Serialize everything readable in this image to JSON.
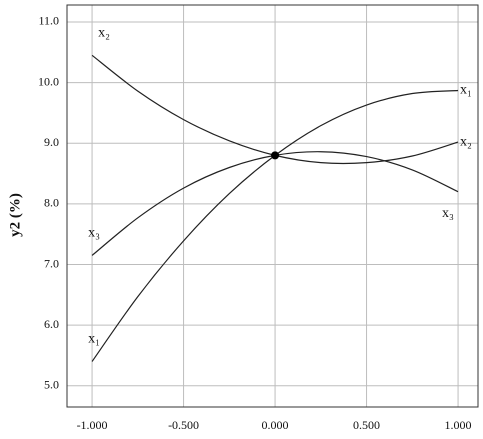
{
  "chart_data": {
    "type": "line",
    "y_label": "y2 (%)",
    "x": [
      -1,
      -0.75,
      -0.5,
      -0.25,
      0,
      0.25,
      0.5,
      0.75,
      1
    ],
    "series": [
      {
        "name": "x₁",
        "color": "#222222",
        "values": [
          5.4,
          6.47,
          7.39,
          8.17,
          8.8,
          9.29,
          9.63,
          9.82,
          9.87
        ]
      },
      {
        "name": "x₂",
        "color": "#222222",
        "values": [
          10.45,
          9.86,
          9.39,
          9.04,
          8.8,
          8.68,
          8.68,
          8.79,
          9.02
        ]
      },
      {
        "name": "x₃",
        "color": "#222222",
        "values": [
          7.15,
          7.77,
          8.26,
          8.6,
          8.8,
          8.86,
          8.78,
          8.56,
          8.2
        ]
      }
    ],
    "center": {
      "x": 0,
      "y": 8.8
    },
    "xlim": [
      -1.137,
      1.109
    ],
    "ylim": [
      4.65,
      11.28
    ],
    "xticks": [
      {
        "value": -1,
        "label": "-1.000"
      },
      {
        "value": -0.5,
        "label": "-0.500"
      },
      {
        "value": 0,
        "label": "0.000"
      },
      {
        "value": 0.5,
        "label": "0.500"
      },
      {
        "value": 1,
        "label": "1.000"
      }
    ],
    "yticks": [
      {
        "value": 5,
        "label": "5.0"
      },
      {
        "value": 6,
        "label": "6.0"
      },
      {
        "value": 7,
        "label": "7.0"
      },
      {
        "value": 8,
        "label": "8.0"
      },
      {
        "value": 9,
        "label": "9.0"
      },
      {
        "value": 10,
        "label": "10.0"
      },
      {
        "value": 11,
        "label": "11.0"
      }
    ],
    "grid": true
  }
}
